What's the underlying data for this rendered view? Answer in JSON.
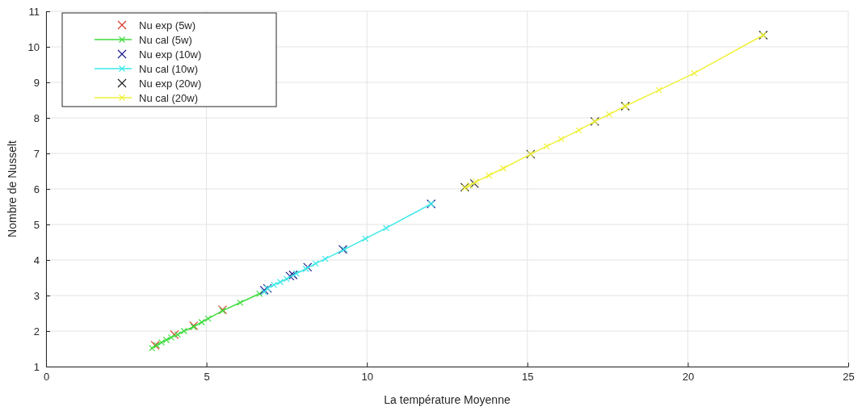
{
  "chart_data": {
    "type": "line",
    "xlabel": "La température Moyenne",
    "ylabel": "Nombre de Nusselt",
    "xlim": [
      0,
      25
    ],
    "ylim": [
      1,
      11
    ],
    "xticks": [
      0,
      5,
      10,
      15,
      20,
      25
    ],
    "yticks": [
      1,
      2,
      3,
      4,
      5,
      6,
      7,
      8,
      9,
      10,
      11
    ],
    "grid": true,
    "legend": "top left",
    "series": [
      {
        "name": "Nu exp (5w)",
        "type": "scatter",
        "marker": "cross",
        "color": "#d93a2b",
        "x": [
          3.4,
          4.0,
          4.6,
          5.5
        ],
        "values": [
          1.6,
          1.9,
          2.15,
          2.6
        ]
      },
      {
        "name": "Nu cal (5w)",
        "type": "line",
        "marker": "cross",
        "color": "#3ddc3d",
        "x": [
          3.3,
          3.45,
          3.6,
          3.75,
          3.9,
          4.1,
          4.3,
          4.6,
          4.85,
          5.05,
          5.5,
          6.05,
          6.65
        ],
        "values": [
          1.52,
          1.6,
          1.68,
          1.75,
          1.82,
          1.9,
          2.0,
          2.12,
          2.25,
          2.35,
          2.57,
          2.8,
          3.05
        ]
      },
      {
        "name": "Nu exp (10w)",
        "type": "scatter",
        "marker": "cross",
        "color": "#1c1c8c",
        "x": [
          6.8,
          6.9,
          7.6,
          7.7,
          8.15,
          9.25,
          12.0
        ],
        "values": [
          3.15,
          3.2,
          3.55,
          3.58,
          3.8,
          4.3,
          5.58
        ]
      },
      {
        "name": "Nu cal (10w)",
        "type": "line",
        "marker": "cross",
        "color": "#3ce8e8",
        "x": [
          6.8,
          6.9,
          7.1,
          7.3,
          7.5,
          7.8,
          8.1,
          8.4,
          8.7,
          9.3,
          9.95,
          10.6,
          12.0
        ],
        "values": [
          3.1,
          3.2,
          3.3,
          3.38,
          3.47,
          3.62,
          3.75,
          3.9,
          4.03,
          4.3,
          4.6,
          4.9,
          5.58
        ]
      },
      {
        "name": "Nu exp (20w)",
        "type": "scatter",
        "marker": "cross",
        "color": "#222222",
        "x": [
          13.05,
          13.35,
          15.1,
          17.1,
          18.05,
          22.35
        ],
        "values": [
          6.05,
          6.15,
          6.98,
          7.9,
          8.33,
          10.33
        ]
      },
      {
        "name": "Nu cal  (20w)",
        "type": "line",
        "marker": "cross",
        "color": "#f0f03a",
        "x": [
          13.05,
          13.2,
          13.4,
          13.8,
          14.25,
          15.1,
          15.6,
          16.05,
          16.6,
          17.1,
          17.55,
          18.05,
          19.1,
          20.2,
          22.35
        ],
        "values": [
          6.03,
          6.1,
          6.2,
          6.38,
          6.58,
          6.98,
          7.2,
          7.4,
          7.65,
          7.9,
          8.1,
          8.33,
          8.78,
          9.26,
          10.33
        ]
      }
    ]
  }
}
